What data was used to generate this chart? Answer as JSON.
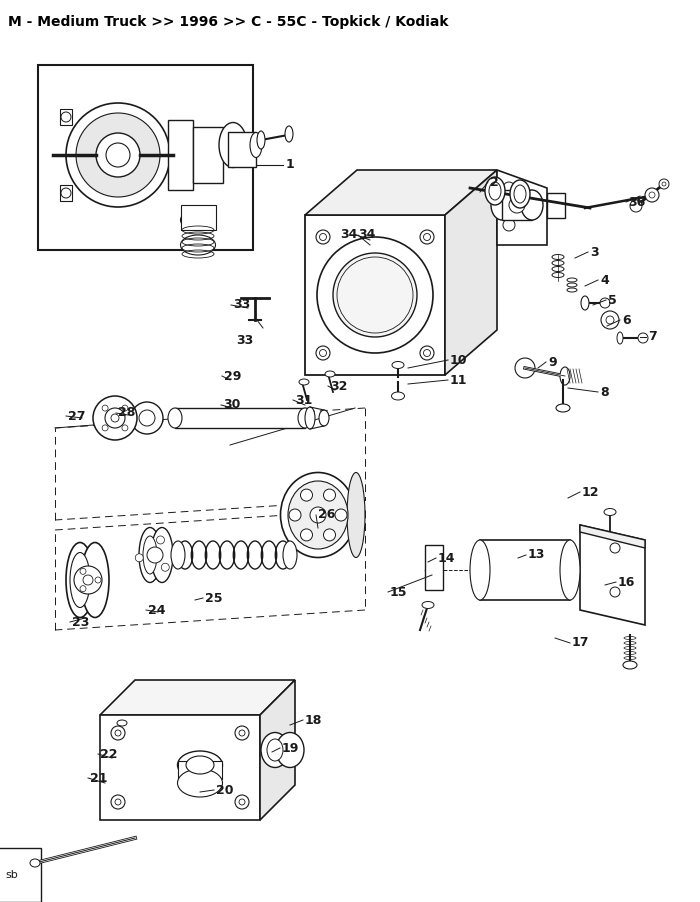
{
  "title": "M - Medium Truck >> 1996 >> C - 55C - Topkick / Kodiak",
  "title_fontsize": 10,
  "title_fontweight": "bold",
  "bg_color": "#ffffff",
  "line_color": "#1a1a1a",
  "text_color": "#000000",
  "watermark": "sb",
  "fig_w": 7.0,
  "fig_h": 9.02,
  "dpi": 100
}
